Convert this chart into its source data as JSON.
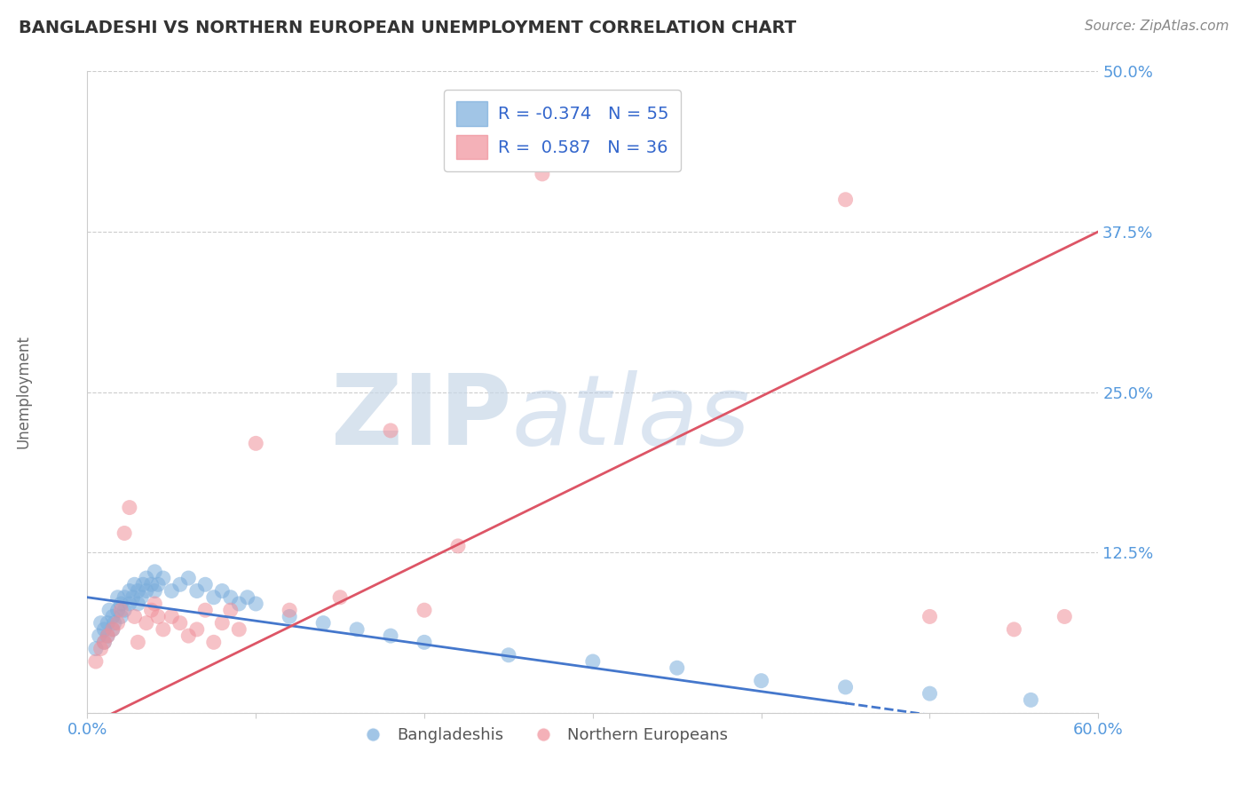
{
  "title": "BANGLADESHI VS NORTHERN EUROPEAN UNEMPLOYMENT CORRELATION CHART",
  "source": "Source: ZipAtlas.com",
  "ylabel": "Unemployment",
  "xlim": [
    0.0,
    0.6
  ],
  "ylim": [
    0.0,
    0.5
  ],
  "yticks": [
    0.0,
    0.125,
    0.25,
    0.375,
    0.5
  ],
  "yticklabels": [
    "",
    "12.5%",
    "25.0%",
    "37.5%",
    "50.0%"
  ],
  "background_color": "#ffffff",
  "grid_color": "#cccccc",
  "blue_color": "#7aaddc",
  "pink_color": "#f0909a",
  "blue_R": -0.374,
  "blue_N": 55,
  "pink_R": 0.587,
  "pink_N": 36,
  "legend_labels": [
    "Bangladeshis",
    "Northern Europeans"
  ],
  "blue_scatter": [
    [
      0.005,
      0.05
    ],
    [
      0.007,
      0.06
    ],
    [
      0.008,
      0.07
    ],
    [
      0.01,
      0.055
    ],
    [
      0.01,
      0.065
    ],
    [
      0.012,
      0.06
    ],
    [
      0.012,
      0.07
    ],
    [
      0.013,
      0.08
    ],
    [
      0.015,
      0.065
    ],
    [
      0.015,
      0.075
    ],
    [
      0.016,
      0.07
    ],
    [
      0.018,
      0.08
    ],
    [
      0.018,
      0.09
    ],
    [
      0.02,
      0.075
    ],
    [
      0.02,
      0.085
    ],
    [
      0.022,
      0.08
    ],
    [
      0.022,
      0.09
    ],
    [
      0.025,
      0.085
    ],
    [
      0.025,
      0.095
    ],
    [
      0.027,
      0.09
    ],
    [
      0.028,
      0.1
    ],
    [
      0.03,
      0.085
    ],
    [
      0.03,
      0.095
    ],
    [
      0.032,
      0.09
    ],
    [
      0.033,
      0.1
    ],
    [
      0.035,
      0.095
    ],
    [
      0.035,
      0.105
    ],
    [
      0.038,
      0.1
    ],
    [
      0.04,
      0.095
    ],
    [
      0.04,
      0.11
    ],
    [
      0.042,
      0.1
    ],
    [
      0.045,
      0.105
    ],
    [
      0.05,
      0.095
    ],
    [
      0.055,
      0.1
    ],
    [
      0.06,
      0.105
    ],
    [
      0.065,
      0.095
    ],
    [
      0.07,
      0.1
    ],
    [
      0.075,
      0.09
    ],
    [
      0.08,
      0.095
    ],
    [
      0.085,
      0.09
    ],
    [
      0.09,
      0.085
    ],
    [
      0.095,
      0.09
    ],
    [
      0.1,
      0.085
    ],
    [
      0.12,
      0.075
    ],
    [
      0.14,
      0.07
    ],
    [
      0.16,
      0.065
    ],
    [
      0.18,
      0.06
    ],
    [
      0.2,
      0.055
    ],
    [
      0.25,
      0.045
    ],
    [
      0.3,
      0.04
    ],
    [
      0.35,
      0.035
    ],
    [
      0.4,
      0.025
    ],
    [
      0.45,
      0.02
    ],
    [
      0.5,
      0.015
    ],
    [
      0.56,
      0.01
    ]
  ],
  "pink_scatter": [
    [
      0.005,
      0.04
    ],
    [
      0.008,
      0.05
    ],
    [
      0.01,
      0.055
    ],
    [
      0.012,
      0.06
    ],
    [
      0.015,
      0.065
    ],
    [
      0.018,
      0.07
    ],
    [
      0.02,
      0.08
    ],
    [
      0.022,
      0.14
    ],
    [
      0.025,
      0.16
    ],
    [
      0.028,
      0.075
    ],
    [
      0.03,
      0.055
    ],
    [
      0.035,
      0.07
    ],
    [
      0.038,
      0.08
    ],
    [
      0.04,
      0.085
    ],
    [
      0.042,
      0.075
    ],
    [
      0.045,
      0.065
    ],
    [
      0.05,
      0.075
    ],
    [
      0.055,
      0.07
    ],
    [
      0.06,
      0.06
    ],
    [
      0.065,
      0.065
    ],
    [
      0.07,
      0.08
    ],
    [
      0.075,
      0.055
    ],
    [
      0.08,
      0.07
    ],
    [
      0.085,
      0.08
    ],
    [
      0.09,
      0.065
    ],
    [
      0.1,
      0.21
    ],
    [
      0.12,
      0.08
    ],
    [
      0.15,
      0.09
    ],
    [
      0.18,
      0.22
    ],
    [
      0.2,
      0.08
    ],
    [
      0.22,
      0.13
    ],
    [
      0.27,
      0.42
    ],
    [
      0.45,
      0.4
    ],
    [
      0.5,
      0.075
    ],
    [
      0.55,
      0.065
    ],
    [
      0.58,
      0.075
    ]
  ],
  "blue_line_x": [
    0.0,
    0.6
  ],
  "blue_line_y": [
    0.09,
    -0.02
  ],
  "blue_line_solid_end": 0.45,
  "pink_line_x": [
    0.0,
    0.6
  ],
  "pink_line_y": [
    -0.01,
    0.375
  ]
}
